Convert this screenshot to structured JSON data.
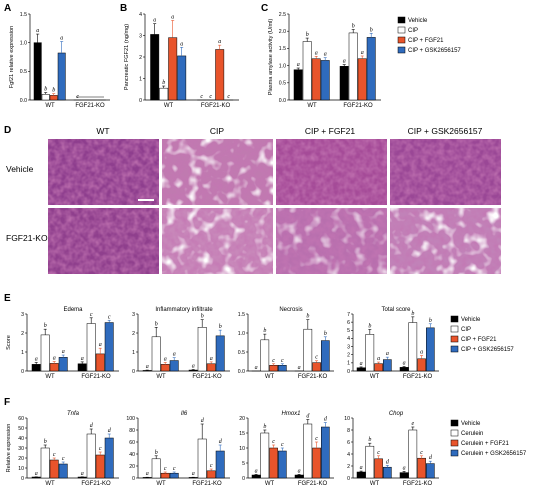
{
  "colors": {
    "Vehicle": "#000000",
    "CIP": "#ffffff",
    "CIP + FGF21": "#e8542b",
    "CIP + GSK2656157": "#2f6bbd",
    "Cerulein": "#ffffff",
    "Cerulein + FGF21": "#e8542b",
    "Cerulein + GSK2656157": "#2f6bbd"
  },
  "panels": {
    "A": {
      "label": "A"
    },
    "B": {
      "label": "B"
    },
    "C": {
      "label": "C"
    },
    "D": {
      "label": "D"
    },
    "E": {
      "label": "E"
    },
    "F": {
      "label": "F"
    }
  },
  "legend_top": [
    "Vehicle",
    "CIP",
    "CIP + FGF21",
    "CIP + GSK2656157"
  ],
  "legend_e": [
    "Vehicle",
    "CIP",
    "CIP + FGF21",
    "CIP + GSK2656157"
  ],
  "legend_f": [
    "Vehicle",
    "Cerulein",
    "Cerulein + FGF21",
    "Cerulein + GSK2656157"
  ],
  "micrograph": {
    "columns": [
      "WT",
      "CIP",
      "CIP + FGF21",
      "CIP + GSK2656157"
    ],
    "rows": [
      "Vehicle",
      "FGF21-KO"
    ]
  },
  "chart_data": [
    {
      "id": "A",
      "type": "bar",
      "title": "",
      "ylabel": "Fgf21 relative expression",
      "ylim": [
        0,
        1.5
      ],
      "yticks": [
        "0.0",
        "0.5",
        "1.0",
        "1.5"
      ],
      "categories": [
        "WT",
        "FGF21-KO"
      ],
      "series": [
        {
          "name": "Vehicle",
          "values": [
            1.0,
            0.0
          ],
          "err": [
            0.15,
            0
          ],
          "letters": [
            "a",
            "c"
          ]
        },
        {
          "name": "CIP",
          "values": [
            0.1,
            0.0
          ],
          "err": [
            0.03,
            0
          ],
          "letters": [
            "b",
            ""
          ]
        },
        {
          "name": "CIP + FGF21",
          "values": [
            0.08,
            0.0
          ],
          "err": [
            0.03,
            0
          ],
          "letters": [
            "b",
            ""
          ]
        },
        {
          "name": "CIP + GSK2656157",
          "values": [
            0.82,
            0.0
          ],
          "err": [
            0.2,
            0
          ],
          "letters": [
            "a",
            ""
          ]
        }
      ]
    },
    {
      "id": "B",
      "type": "bar",
      "title": "",
      "ylabel": "Pancreatic FGF21 (ng/mg)",
      "ylim": [
        0,
        4
      ],
      "yticks": [
        "0",
        "1",
        "2",
        "3",
        "4"
      ],
      "categories": [
        "WT",
        "FGF21-KO"
      ],
      "series": [
        {
          "name": "Vehicle",
          "values": [
            3.05,
            0.0
          ],
          "err": [
            0.5,
            0
          ],
          "letters": [
            "a",
            "c"
          ]
        },
        {
          "name": "CIP",
          "values": [
            0.55,
            0.0
          ],
          "err": [
            0.1,
            0
          ],
          "letters": [
            "b",
            "c"
          ]
        },
        {
          "name": "CIP + FGF21",
          "values": [
            2.9,
            2.35
          ],
          "err": [
            0.8,
            0.2
          ],
          "letters": [
            "a",
            "a"
          ]
        },
        {
          "name": "CIP + GSK2656157",
          "values": [
            2.05,
            0.0
          ],
          "err": [
            0.4,
            0
          ],
          "letters": [
            "a",
            "c"
          ]
        }
      ]
    },
    {
      "id": "C",
      "type": "bar",
      "title": "",
      "ylabel": "Plasma amylase activity (U/ml)",
      "ylim": [
        0,
        2.5
      ],
      "yticks": [
        "0.0",
        "0.5",
        "1.0",
        "1.5",
        "2.0",
        "2.5"
      ],
      "categories": [
        "WT",
        "FGF21-KO"
      ],
      "series": [
        {
          "name": "Vehicle",
          "values": [
            0.88,
            0.98
          ],
          "err": [
            0.05,
            0.05
          ],
          "letters": [
            "a",
            "a"
          ]
        },
        {
          "name": "CIP",
          "values": [
            1.7,
            1.95
          ],
          "err": [
            0.1,
            0.1
          ],
          "letters": [
            "b",
            "b"
          ]
        },
        {
          "name": "CIP + FGF21",
          "values": [
            1.2,
            1.2
          ],
          "err": [
            0.07,
            0.08
          ],
          "letters": [
            "a",
            "a"
          ]
        },
        {
          "name": "CIP + GSK2656157",
          "values": [
            1.15,
            1.82
          ],
          "err": [
            0.08,
            0.12
          ],
          "letters": [
            "a",
            "b"
          ]
        }
      ]
    },
    {
      "id": "E1",
      "type": "bar",
      "title": "Edema",
      "ylabel": "Score",
      "ylim": [
        0,
        3
      ],
      "yticks": [
        "0",
        "1",
        "2",
        "3"
      ],
      "categories": [
        "WT",
        "FGF21-KO"
      ],
      "series": [
        {
          "name": "Vehicle",
          "values": [
            0.35,
            0.38
          ],
          "err": [
            0.1,
            0.1
          ],
          "letters": [
            "a",
            "a"
          ]
        },
        {
          "name": "CIP",
          "values": [
            1.9,
            2.5
          ],
          "err": [
            0.3,
            0.3
          ],
          "letters": [
            "b",
            "c"
          ]
        },
        {
          "name": "CIP + FGF21",
          "values": [
            0.4,
            0.9
          ],
          "err": [
            0.1,
            0.3
          ],
          "letters": [
            "a",
            "a"
          ]
        },
        {
          "name": "CIP + GSK2656157",
          "values": [
            0.72,
            2.55
          ],
          "err": [
            0.12,
            0.12
          ],
          "letters": [
            "a",
            "c"
          ]
        }
      ]
    },
    {
      "id": "E2",
      "type": "bar",
      "title": "Inflammatory infiltrate",
      "ylabel": "",
      "ylim": [
        0,
        3
      ],
      "yticks": [
        "0",
        "1",
        "2",
        "3"
      ],
      "categories": [
        "WT",
        "FGF21-KO"
      ],
      "series": [
        {
          "name": "Vehicle",
          "values": [
            0.03,
            0.05
          ],
          "err": [
            0.02,
            0.03
          ],
          "letters": [
            "a",
            "a"
          ]
        },
        {
          "name": "CIP",
          "values": [
            1.8,
            2.3
          ],
          "err": [
            0.5,
            0.4
          ],
          "letters": [
            "b",
            "b"
          ]
        },
        {
          "name": "CIP + FGF21",
          "values": [
            0.35,
            0.38
          ],
          "err": [
            0.1,
            0.1
          ],
          "letters": [
            "a",
            "a"
          ]
        },
        {
          "name": "CIP + GSK2656157",
          "values": [
            0.55,
            1.85
          ],
          "err": [
            0.15,
            0.3
          ],
          "letters": [
            "a",
            "b"
          ]
        }
      ]
    },
    {
      "id": "E3",
      "type": "bar",
      "title": "Necrosis",
      "ylabel": "",
      "ylim": [
        0,
        1.5
      ],
      "yticks": [
        "0.0",
        "0.5",
        "1.0",
        "1.5"
      ],
      "categories": [
        "WT",
        "FGF21-KO"
      ],
      "series": [
        {
          "name": "Vehicle",
          "values": [
            0.0,
            0.0
          ],
          "err": [
            0,
            0
          ],
          "letters": [
            "a",
            "a"
          ]
        },
        {
          "name": "CIP",
          "values": [
            0.82,
            1.1
          ],
          "err": [
            0.15,
            0.25
          ],
          "letters": [
            "b",
            "b"
          ]
        },
        {
          "name": "CIP + FGF21",
          "values": [
            0.15,
            0.22
          ],
          "err": [
            0.04,
            0.05
          ],
          "letters": [
            "c",
            "c"
          ]
        },
        {
          "name": "CIP + GSK2656157",
          "values": [
            0.15,
            0.8
          ],
          "err": [
            0.04,
            0.1
          ],
          "letters": [
            "c",
            "b"
          ]
        }
      ]
    },
    {
      "id": "E4",
      "type": "bar",
      "title": "Total score",
      "ylabel": "",
      "ylim": [
        0,
        7
      ],
      "yticks": [
        "0",
        "1",
        "2",
        "3",
        "4",
        "5",
        "6",
        "7"
      ],
      "categories": [
        "WT",
        "FGF21-KO"
      ],
      "series": [
        {
          "name": "Vehicle",
          "values": [
            0.4,
            0.45
          ],
          "err": [
            0.1,
            0.1
          ],
          "letters": [
            "a",
            "a"
          ]
        },
        {
          "name": "CIP",
          "values": [
            4.5,
            5.95
          ],
          "err": [
            0.6,
            0.7
          ],
          "letters": [
            "b",
            "b"
          ]
        },
        {
          "name": "CIP + FGF21",
          "values": [
            0.9,
            1.5
          ],
          "err": [
            0.2,
            0.4
          ],
          "letters": [
            "a",
            "a"
          ]
        },
        {
          "name": "CIP + GSK2656157",
          "values": [
            1.4,
            5.3
          ],
          "err": [
            0.3,
            0.5
          ],
          "letters": [
            "a",
            "b"
          ]
        }
      ]
    },
    {
      "id": "F1",
      "type": "bar",
      "title": "Tnfa",
      "ylabel": "Relative expression",
      "ylim": [
        0,
        60
      ],
      "yticks": [
        "0",
        "10",
        "20",
        "30",
        "40",
        "50",
        "60"
      ],
      "categories": [
        "WT",
        "FGF21-KO"
      ],
      "series": [
        {
          "name": "Vehicle",
          "values": [
            1,
            1
          ],
          "err": [
            0.2,
            0.2
          ],
          "letters": [
            "a",
            "a"
          ]
        },
        {
          "name": "Cerulein",
          "values": [
            30,
            44
          ],
          "err": [
            3,
            5
          ],
          "letters": [
            "b",
            "d"
          ]
        },
        {
          "name": "Cerulein + FGF21",
          "values": [
            18,
            23
          ],
          "err": [
            2,
            3
          ],
          "letters": [
            "c",
            "c"
          ]
        },
        {
          "name": "Cerulein + GSK2656157",
          "values": [
            14,
            40
          ],
          "err": [
            2,
            4
          ],
          "letters": [
            "c",
            "d"
          ]
        }
      ]
    },
    {
      "id": "F2",
      "type": "bar",
      "title": "Il6",
      "ylabel": "",
      "ylim": [
        0,
        100
      ],
      "yticks": [
        "0",
        "20",
        "40",
        "60",
        "80",
        "100"
      ],
      "categories": [
        "WT",
        "FGF21-KO"
      ],
      "series": [
        {
          "name": "Vehicle",
          "values": [
            1,
            1
          ],
          "err": [
            0.3,
            0.3
          ],
          "letters": [
            "a",
            "a"
          ]
        },
        {
          "name": "Cerulein",
          "values": [
            32,
            65
          ],
          "err": [
            5,
            25
          ],
          "letters": [
            "b",
            "d"
          ]
        },
        {
          "name": "Cerulein + FGF21",
          "values": [
            8,
            12
          ],
          "err": [
            2,
            3
          ],
          "letters": [
            "c",
            "c"
          ]
        },
        {
          "name": "Cerulein + GSK2656157",
          "values": [
            8,
            45
          ],
          "err": [
            2,
            10
          ],
          "letters": [
            "c",
            "d"
          ]
        }
      ]
    },
    {
      "id": "F3",
      "type": "bar",
      "title": "Hmox1",
      "ylabel": "",
      "ylim": [
        0,
        20
      ],
      "yticks": [
        "0",
        "5",
        "10",
        "15",
        "20"
      ],
      "categories": [
        "WT",
        "FGF21-KO"
      ],
      "series": [
        {
          "name": "Vehicle",
          "values": [
            1,
            1
          ],
          "err": [
            0.2,
            0.2
          ],
          "letters": [
            "a",
            "a"
          ]
        },
        {
          "name": "Cerulein",
          "values": [
            15,
            18
          ],
          "err": [
            1,
            1.5
          ],
          "letters": [
            "b",
            "d"
          ]
        },
        {
          "name": "Cerulein + FGF21",
          "values": [
            10,
            10
          ],
          "err": [
            1,
            2
          ],
          "letters": [
            "c",
            "c"
          ]
        },
        {
          "name": "Cerulein + GSK2656157",
          "values": [
            9,
            17
          ],
          "err": [
            1,
            1.5
          ],
          "letters": [
            "c",
            "d"
          ]
        }
      ]
    },
    {
      "id": "F4",
      "type": "bar",
      "title": "Chop",
      "ylabel": "",
      "ylim": [
        0,
        10
      ],
      "yticks": [
        "0",
        "2",
        "4",
        "6",
        "8",
        "10"
      ],
      "categories": [
        "WT",
        "FGF21-KO"
      ],
      "series": [
        {
          "name": "Vehicle",
          "values": [
            1,
            0.9
          ],
          "err": [
            0.15,
            0.2
          ],
          "letters": [
            "a",
            "a"
          ]
        },
        {
          "name": "Cerulein",
          "values": [
            5.3,
            8.0
          ],
          "err": [
            0.5,
            0.5
          ],
          "letters": [
            "b",
            "e"
          ]
        },
        {
          "name": "Cerulein + FGF21",
          "values": [
            3.2,
            3.3
          ],
          "err": [
            0.5,
            0.4
          ],
          "letters": [
            "c",
            "c"
          ]
        },
        {
          "name": "Cerulein + GSK2656157",
          "values": [
            1.8,
            2.4
          ],
          "err": [
            0.3,
            0.4
          ],
          "letters": [
            "d",
            "d"
          ]
        }
      ]
    }
  ]
}
